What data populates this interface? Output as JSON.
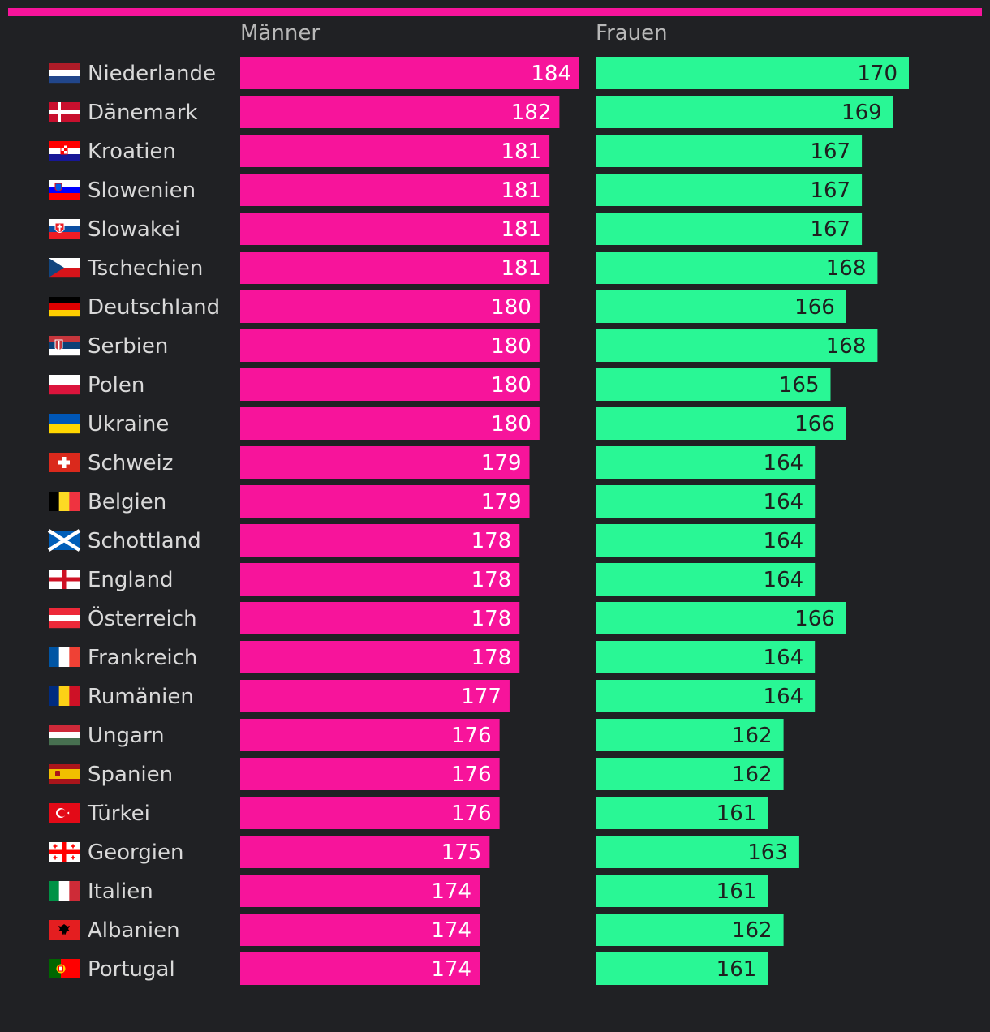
{
  "colors": {
    "background": "#202124",
    "accent_bar": "#f7149b",
    "men": "#f7149b",
    "women": "#29f795"
  },
  "headers": {
    "men": "Männer",
    "women": "Frauen"
  },
  "chart_data": {
    "type": "bar",
    "orientation": "horizontal",
    "title": "",
    "categories": [
      "Niederlande",
      "Dänemark",
      "Kroatien",
      "Slowenien",
      "Slowakei",
      "Tschechien",
      "Deutschland",
      "Serbien",
      "Polen",
      "Ukraine",
      "Schweiz",
      "Belgien",
      "Schottland",
      "England",
      "Österreich",
      "Frankreich",
      "Rumänien",
      "Ungarn",
      "Spanien",
      "Türkei",
      "Georgien",
      "Italien",
      "Albanien",
      "Portugal"
    ],
    "flags": [
      "netherlands-flag-icon",
      "denmark-flag-icon",
      "croatia-flag-icon",
      "slovenia-flag-icon",
      "slovakia-flag-icon",
      "czechia-flag-icon",
      "germany-flag-icon",
      "serbia-flag-icon",
      "poland-flag-icon",
      "ukraine-flag-icon",
      "switzerland-flag-icon",
      "belgium-flag-icon",
      "scotland-flag-icon",
      "england-flag-icon",
      "austria-flag-icon",
      "france-flag-icon",
      "romania-flag-icon",
      "hungary-flag-icon",
      "spain-flag-icon",
      "turkey-flag-icon",
      "georgia-flag-icon",
      "italy-flag-icon",
      "albania-flag-icon",
      "portugal-flag-icon"
    ],
    "series": [
      {
        "name": "Männer",
        "values": [
          184,
          182,
          181,
          181,
          181,
          181,
          180,
          180,
          180,
          180,
          179,
          179,
          178,
          178,
          178,
          178,
          177,
          176,
          176,
          176,
          175,
          174,
          174,
          174
        ]
      },
      {
        "name": "Frauen",
        "values": [
          170,
          169,
          167,
          167,
          167,
          168,
          166,
          168,
          165,
          166,
          164,
          164,
          164,
          164,
          166,
          164,
          164,
          162,
          162,
          161,
          163,
          161,
          162,
          161
        ]
      }
    ]
  }
}
